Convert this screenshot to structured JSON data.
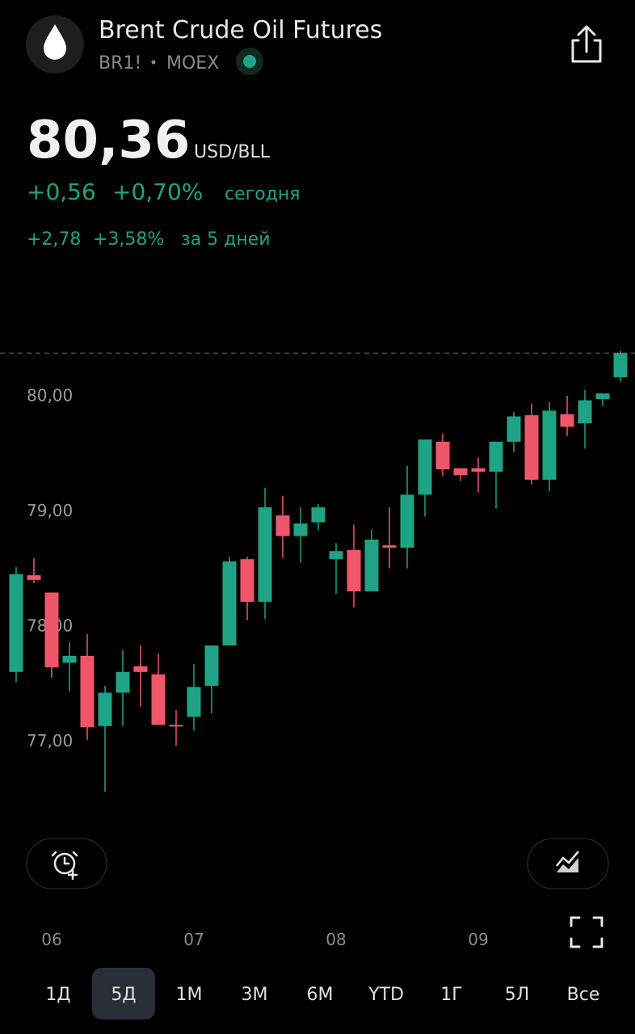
{
  "header": {
    "title": "Brent Crude Oil Futures",
    "ticker": "BR1!",
    "exchange": "MOEX",
    "price": "80,36",
    "currency": "USD/BLL",
    "change": "+0,56",
    "change_pct": "+0,70%",
    "change_period": "сегодня",
    "change5": "+2,78",
    "change5_pct": "+3,58%",
    "change5_period": "за 5 дней"
  },
  "ranges": [
    {
      "label": "1Д",
      "selected": false
    },
    {
      "label": "5Д",
      "selected": true
    },
    {
      "label": "1М",
      "selected": false
    },
    {
      "label": "3М",
      "selected": false
    },
    {
      "label": "6М",
      "selected": false
    },
    {
      "label": "YTD",
      "selected": false
    },
    {
      "label": "1Г",
      "selected": false
    },
    {
      "label": "5Л",
      "selected": false
    },
    {
      "label": "Все",
      "selected": false
    }
  ],
  "chart_data": {
    "type": "candlestick",
    "up_color": "#1fa384",
    "down_color": "#f0566a",
    "categories": [
      null,
      null,
      "06",
      null,
      null,
      null,
      null,
      null,
      null,
      null,
      "07",
      null,
      null,
      null,
      null,
      null,
      null,
      null,
      "08",
      null,
      null,
      null,
      null,
      null,
      null,
      null,
      "09",
      null,
      null,
      null,
      null,
      null,
      null,
      null,
      null
    ],
    "open": [
      77.59,
      78.43,
      78.28,
      77.67,
      77.73,
      77.12,
      77.41,
      77.64,
      77.57,
      77.13,
      77.2,
      77.47,
      77.82,
      78.57,
      78.2,
      78.95,
      78.77,
      78.89,
      78.57,
      78.65,
      78.29,
      78.69,
      78.67,
      79.13,
      79.59,
      79.36,
      79.36,
      79.33,
      79.59,
      79.82,
      79.26,
      79.83,
      79.75,
      79.96,
      80.15
    ],
    "high": [
      78.5,
      78.58,
      78.28,
      77.85,
      77.92,
      77.47,
      77.78,
      77.82,
      77.75,
      77.26,
      77.66,
      77.82,
      78.59,
      78.59,
      79.19,
      79.12,
      79.02,
      79.05,
      78.71,
      78.87,
      78.83,
      79.02,
      79.38,
      79.61,
      79.66,
      79.36,
      79.45,
      79.59,
      79.85,
      79.92,
      79.94,
      79.99,
      80.04,
      80.01,
      80.38
    ],
    "low": [
      77.5,
      78.36,
      77.54,
      77.42,
      77.0,
      76.55,
      77.12,
      77.29,
      77.13,
      76.95,
      77.08,
      77.23,
      77.82,
      78.04,
      78.05,
      78.58,
      78.54,
      78.82,
      78.27,
      78.15,
      78.29,
      78.49,
      78.49,
      78.94,
      79.29,
      79.25,
      79.15,
      79.01,
      79.5,
      79.22,
      79.16,
      79.64,
      79.53,
      79.9,
      80.11
    ],
    "close": [
      78.44,
      78.39,
      77.63,
      77.73,
      77.11,
      77.41,
      77.59,
      77.59,
      77.13,
      77.12,
      77.46,
      77.82,
      78.55,
      78.2,
      79.02,
      78.77,
      78.88,
      79.02,
      78.64,
      78.29,
      78.74,
      78.67,
      79.13,
      79.61,
      79.35,
      79.3,
      79.33,
      79.59,
      79.81,
      79.26,
      79.86,
      79.72,
      79.95,
      80.01,
      80.36
    ],
    "ylim": [
      76.41,
      80.48
    ],
    "yticks": [
      {
        "value": 80,
        "label": "80,00"
      },
      {
        "value": 79,
        "label": "79,00"
      },
      {
        "value": 78,
        "label": "78,00"
      },
      {
        "value": 77,
        "label": "77,00"
      }
    ]
  }
}
